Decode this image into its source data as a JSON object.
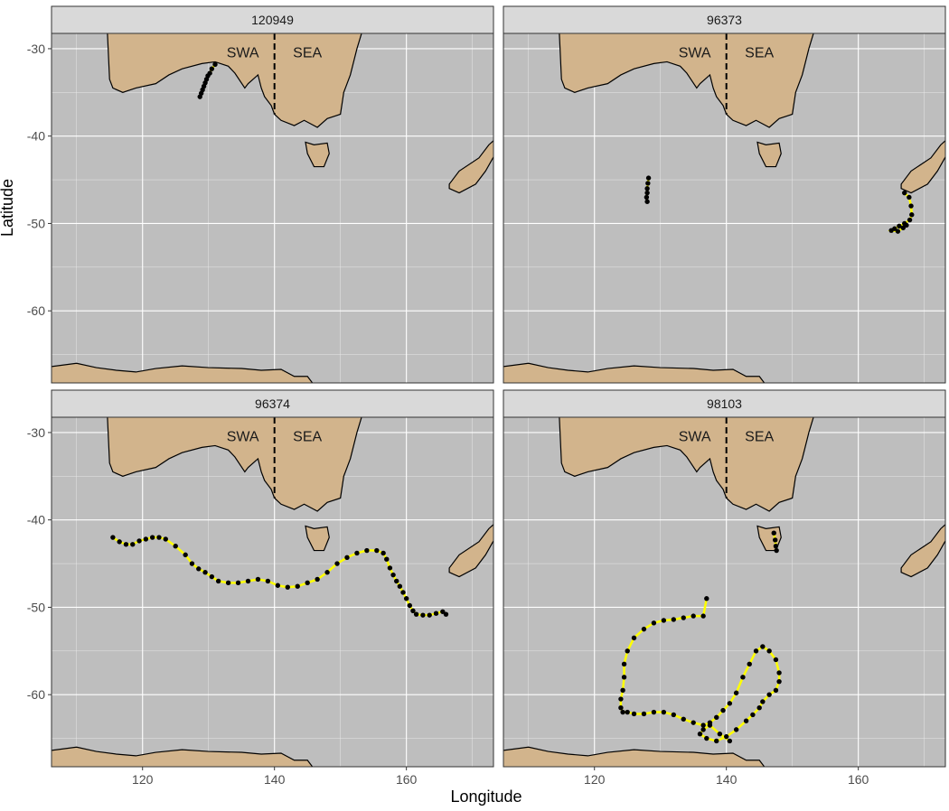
{
  "chart_data": {
    "type": "track-map",
    "x_label": "Longitude",
    "y_label": "Latitude",
    "xlim": [
      106.2,
      173.2
    ],
    "ylim": [
      -68.25,
      -28.25
    ],
    "xticks": [
      120,
      140,
      160
    ],
    "yticks": [
      -30,
      -40,
      -50,
      -60
    ],
    "xminor": [
      110,
      130,
      150,
      170
    ],
    "yminor": [
      -35,
      -45,
      -55,
      -65
    ],
    "grid": true,
    "regions": [
      "SWA",
      "SEA"
    ],
    "point_color": "#000000",
    "line_color": "#ffff00",
    "panels": [
      {
        "title": "120949",
        "series": [
          {
            "x": [
              131,
              130.5,
              130.2,
              129.9,
              129.7,
              129.5,
              129.3,
              129.1,
              128.9,
              128.7
            ],
            "y": [
              -31.8,
              -32.3,
              -32.8,
              -33.1,
              -33.5,
              -33.9,
              -34.3,
              -34.7,
              -35.1,
              -35.5
            ]
          }
        ]
      },
      {
        "title": "96373",
        "series": [
          {
            "x": [
              128.2,
              128.1,
              128,
              128,
              127.9,
              128
            ],
            "y": [
              -44.8,
              -45.4,
              -46,
              -46.5,
              -47,
              -47.5
            ]
          },
          {
            "x": [
              167,
              167.7,
              168,
              168.1,
              167.8,
              167,
              166.2,
              165.5,
              165,
              166,
              166.8,
              167.3
            ],
            "y": [
              -46.5,
              -47,
              -48,
              -49,
              -49.6,
              -50,
              -50.3,
              -50.6,
              -50.8,
              -50.9,
              -50.5,
              -50.2
            ]
          }
        ]
      },
      {
        "title": "96374",
        "series": [
          {
            "x": [
              115.5,
              116.5,
              117.5,
              118.5,
              119.5,
              120.5,
              121.5,
              122.5,
              123.5,
              125,
              126.5,
              127.5,
              128.5,
              129.5,
              130.5,
              131.5,
              133,
              134.5,
              136,
              137.5,
              139,
              140.5,
              142,
              143.5,
              145,
              146.5,
              148,
              149.5,
              151,
              152.5,
              154,
              155.5,
              156.5,
              157,
              157.5,
              158,
              158.5,
              159,
              159.5,
              160,
              160.5,
              161,
              161.5,
              162.5,
              163.5,
              164.5,
              165.5,
              166
            ],
            "y": [
              -42,
              -42.5,
              -42.8,
              -42.8,
              -42.4,
              -42.2,
              -42,
              -42,
              -42.2,
              -43,
              -44,
              -45,
              -45.6,
              -46,
              -46.5,
              -47,
              -47.2,
              -47.2,
              -47,
              -46.8,
              -47,
              -47.5,
              -47.7,
              -47.6,
              -47.2,
              -46.8,
              -46,
              -45,
              -44.3,
              -43.8,
              -43.5,
              -43.5,
              -43.8,
              -44.5,
              -45.5,
              -46.3,
              -47,
              -47.6,
              -48.3,
              -49,
              -49.8,
              -50.4,
              -50.8,
              -50.9,
              -50.9,
              -50.7,
              -50.5,
              -50.8
            ]
          }
        ]
      },
      {
        "title": "98103",
        "series": [
          {
            "x": [
              147.2,
              147.4,
              147.5,
              147.6
            ],
            "y": [
              -41.5,
              -42.3,
              -43,
              -43.5
            ]
          },
          {
            "x": [
              137,
              136.5,
              135,
              133.5,
              132,
              130.5,
              129,
              127.5,
              126,
              125,
              124.5,
              124.5,
              124.3,
              124,
              124,
              124.3,
              125,
              126,
              127.5,
              129,
              130.5,
              132,
              133.5,
              135,
              136.5,
              137.5,
              138.5,
              139.5,
              140.5,
              141.5,
              142.5,
              143.5,
              144.5,
              145.5,
              146.5,
              147.5,
              148,
              148,
              147.5,
              146.5,
              145.5,
              145,
              144,
              143,
              141.5,
              140,
              138.5,
              137,
              136,
              136.5,
              137.5,
              139,
              140.5
            ],
            "y": [
              -49,
              -51,
              -51,
              -51.2,
              -51.4,
              -51.5,
              -51.8,
              -52.5,
              -53.5,
              -55,
              -56.5,
              -58,
              -59.5,
              -60.5,
              -61.5,
              -62,
              -62,
              -62.2,
              -62.2,
              -62,
              -62,
              -62.3,
              -62.8,
              -63.2,
              -63.5,
              -63.2,
              -62.6,
              -61.8,
              -61,
              -59.8,
              -58,
              -56.5,
              -55,
              -54.5,
              -55,
              -56,
              -57.5,
              -58.5,
              -59.5,
              -60,
              -60.8,
              -61.5,
              -62.3,
              -63,
              -64,
              -64.8,
              -65.3,
              -65,
              -64.5,
              -64,
              -63.5,
              -64.5,
              -65.3
            ]
          }
        ]
      }
    ]
  }
}
